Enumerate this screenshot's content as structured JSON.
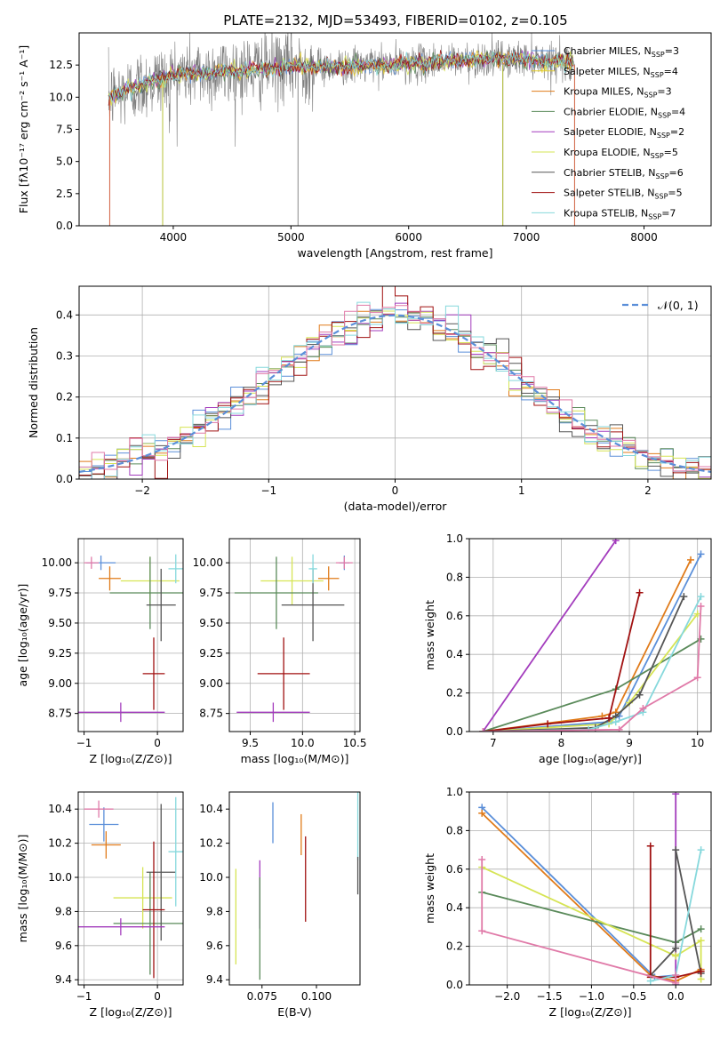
{
  "figure_title": "PLATE=2132, MJD=53493, FIBERID=0102, z=0.105",
  "colors": {
    "grid": "#b0b0b0",
    "gauss": "#5b8fd9"
  },
  "chart_data": [
    {
      "id": "spectrum",
      "type": "line",
      "xlabel": "wavelength [Angstrom, rest frame]",
      "ylabel": "Flux [fλ10⁻¹⁷ erg cm⁻² s⁻¹ A⁻¹]",
      "xlim": [
        3200,
        8570
      ],
      "ylim": [
        0,
        15
      ],
      "xticks": [
        4000,
        5000,
        6000,
        7000,
        8000
      ],
      "yticks": [
        0.0,
        2.5,
        5.0,
        7.5,
        10.0,
        12.5
      ],
      "grid": false,
      "legend_position": "top-right",
      "observed_range": [
        3450,
        7410
      ],
      "continuum_anchors": [
        [
          3450,
          10.0
        ],
        [
          3600,
          10.5
        ],
        [
          3800,
          11.2
        ],
        [
          4000,
          11.8
        ],
        [
          4500,
          12.0
        ],
        [
          5000,
          12.4
        ],
        [
          5500,
          12.4
        ],
        [
          6000,
          12.6
        ],
        [
          6500,
          12.9
        ],
        [
          7000,
          13.0
        ],
        [
          7400,
          12.7
        ]
      ],
      "series": [
        {
          "name": "Chabrier MILES, N",
          "sub": "SSP",
          "count": "=3",
          "color": "#5b8fd9"
        },
        {
          "name": "Salpeter MILES, N",
          "sub": "SSP",
          "count": "=4",
          "color": "#e5ce28"
        },
        {
          "name": "Kroupa MILES, N",
          "sub": "SSP",
          "count": "=3",
          "color": "#e07b1a"
        },
        {
          "name": "Chabrier ELODIE, N",
          "sub": "SSP",
          "count": "=4",
          "color": "#5a8a5a"
        },
        {
          "name": "Salpeter ELODIE, N",
          "sub": "SSP",
          "count": "=2",
          "color": "#a33cbd"
        },
        {
          "name": "Kroupa ELODIE, N",
          "sub": "SSP",
          "count": "=5",
          "color": "#d6e454"
        },
        {
          "name": "Chabrier STELIB, N",
          "sub": "SSP",
          "count": "=6",
          "color": "#555555"
        },
        {
          "name": "Salpeter STELIB, N",
          "sub": "SSP",
          "count": "=5",
          "color": "#a01010"
        },
        {
          "name": "Kroupa STELIB, N",
          "sub": "SSP",
          "count": "=7",
          "color": "#86d8dc"
        }
      ]
    },
    {
      "id": "residuals",
      "type": "line",
      "xlabel": "(data-model)/error",
      "ylabel": "Normed distribution",
      "xlim": [
        -2.5,
        2.5
      ],
      "ylim": [
        0,
        0.47
      ],
      "xticks": [
        -2,
        -1,
        0,
        1,
        2
      ],
      "yticks": [
        0.0,
        0.1,
        0.2,
        0.3,
        0.4
      ],
      "grid": true,
      "legend": {
        "label": "𝒩(0, 1)",
        "position": "top-right"
      },
      "histogram_colors": [
        "#5b8fd9",
        "#e07b1a",
        "#5a8a5a",
        "#a33cbd",
        "#d6e454",
        "#555555",
        "#a01010",
        "#86d8dc",
        "#e07aa8"
      ]
    },
    {
      "id": "age_vs_z",
      "type": "scatter",
      "xlabel": "Z [log₁₀(Z/Z⊙)]",
      "ylabel": "age  [log₁₀(age/yr)]",
      "xlim": [
        -1.08,
        0.35
      ],
      "ylim": [
        8.6,
        10.2
      ],
      "xticks": [
        -1,
        0
      ],
      "yticks": [
        8.75,
        9.0,
        9.25,
        9.5,
        9.75,
        10.0
      ],
      "grid": true,
      "points": [
        {
          "x": -0.77,
          "y": 10.0,
          "xerr": 0.2,
          "yerr": 0.06,
          "color": "#5b8fd9"
        },
        {
          "x": -0.65,
          "y": 9.87,
          "xerr": 0.15,
          "yerr": 0.1,
          "color": "#e07b1a"
        },
        {
          "x": -0.9,
          "y": 10.0,
          "xerr": 0.1,
          "yerr": 0.05,
          "color": "#e07aa8"
        },
        {
          "x": -0.1,
          "y": 9.85,
          "xerr": 0.4,
          "yerr": 0.2,
          "color": "#d6e454"
        },
        {
          "x": -0.1,
          "y": 9.75,
          "xerr": 0.55,
          "yerr": 0.3,
          "color": "#5a8a5a"
        },
        {
          "x": 0.05,
          "y": 9.65,
          "xerr": 0.2,
          "yerr": 0.3,
          "color": "#555555"
        },
        {
          "x": 0.25,
          "y": 9.95,
          "xerr": 0.1,
          "yerr": 0.12,
          "color": "#86d8dc"
        },
        {
          "x": -0.05,
          "y": 9.08,
          "xerr": 0.15,
          "yerr": 0.3,
          "color": "#a01010"
        },
        {
          "x": -0.5,
          "y": 8.76,
          "xerr": 0.6,
          "yerr": 0.08,
          "color": "#a33cbd"
        }
      ]
    },
    {
      "id": "age_vs_mass",
      "type": "scatter",
      "xlabel": "mass [log₁₀(M/M⊙)]",
      "ylabel": "",
      "xlim": [
        9.3,
        10.55
      ],
      "ylim": [
        8.6,
        10.2
      ],
      "xticks": [
        9.5,
        10.0,
        10.5
      ],
      "yticks": [
        8.75,
        9.0,
        9.25,
        9.5,
        9.75,
        10.0
      ],
      "grid": true,
      "points": [
        {
          "x": 10.4,
          "y": 10.0,
          "xerr": 0.05,
          "yerr": 0.06,
          "color": "#5b8fd9"
        },
        {
          "x": 10.25,
          "y": 9.87,
          "xerr": 0.1,
          "yerr": 0.1,
          "color": "#e07b1a"
        },
        {
          "x": 10.4,
          "y": 10.0,
          "xerr": 0.08,
          "yerr": 0.05,
          "color": "#e07aa8"
        },
        {
          "x": 9.9,
          "y": 9.85,
          "xerr": 0.3,
          "yerr": 0.2,
          "color": "#d6e454"
        },
        {
          "x": 9.75,
          "y": 9.75,
          "xerr": 0.4,
          "yerr": 0.3,
          "color": "#5a8a5a"
        },
        {
          "x": 10.1,
          "y": 9.65,
          "xerr": 0.3,
          "yerr": 0.3,
          "color": "#555555"
        },
        {
          "x": 10.1,
          "y": 9.95,
          "xerr": 0.04,
          "yerr": 0.12,
          "color": "#86d8dc"
        },
        {
          "x": 9.82,
          "y": 9.08,
          "xerr": 0.25,
          "yerr": 0.3,
          "color": "#a01010"
        },
        {
          "x": 9.72,
          "y": 8.76,
          "xerr": 0.35,
          "yerr": 0.08,
          "color": "#a33cbd"
        }
      ]
    },
    {
      "id": "mass_weight_vs_age",
      "type": "line",
      "xlabel": "age  [log₁₀(age/yr)]",
      "ylabel": "mass weight",
      "xlim": [
        6.65,
        10.2
      ],
      "ylim": [
        0,
        1.0
      ],
      "xticks": [
        7,
        8,
        9,
        10
      ],
      "yticks": [
        0.0,
        0.2,
        0.4,
        0.6,
        0.8,
        1.0
      ],
      "grid": true,
      "series": [
        {
          "color": "#5b8fd9",
          "x": [
            6.85,
            8.7,
            8.85,
            10.05
          ],
          "y": [
            0.0,
            0.05,
            0.08,
            0.92
          ]
        },
        {
          "color": "#e07b1a",
          "x": [
            6.85,
            8.6,
            8.8,
            9.9
          ],
          "y": [
            0.0,
            0.08,
            0.1,
            0.89
          ]
        },
        {
          "color": "#5a8a5a",
          "x": [
            6.85,
            8.8,
            10.05
          ],
          "y": [
            0.0,
            0.22,
            0.48
          ]
        },
        {
          "color": "#a33cbd",
          "x": [
            6.85,
            8.8
          ],
          "y": [
            0.0,
            0.99
          ]
        },
        {
          "color": "#d6e454",
          "x": [
            6.85,
            8.7,
            9.0,
            10.0
          ],
          "y": [
            0.0,
            0.04,
            0.15,
            0.61
          ]
        },
        {
          "color": "#555555",
          "x": [
            6.85,
            8.5,
            8.8,
            9.15,
            9.8
          ],
          "y": [
            0.0,
            0.02,
            0.08,
            0.19,
            0.7
          ]
        },
        {
          "color": "#a01010",
          "x": [
            6.85,
            7.8,
            8.7,
            9.15
          ],
          "y": [
            0.0,
            0.04,
            0.07,
            0.72
          ]
        },
        {
          "color": "#86d8dc",
          "x": [
            6.85,
            8.4,
            8.8,
            9.2,
            10.05
          ],
          "y": [
            0.0,
            0.01,
            0.05,
            0.1,
            0.7
          ]
        },
        {
          "color": "#e07aa8",
          "x": [
            6.85,
            8.85,
            9.2,
            10.0,
            10.05
          ],
          "y": [
            0.0,
            0.01,
            0.12,
            0.28,
            0.65
          ]
        }
      ]
    },
    {
      "id": "mass_vs_z",
      "type": "scatter",
      "xlabel": "Z [log₁₀(Z/Z⊙)]",
      "ylabel": "mass [log₁₀(M/M⊙)]",
      "xlim": [
        -1.08,
        0.35
      ],
      "ylim": [
        9.37,
        10.5
      ],
      "xticks": [
        -1,
        0
      ],
      "yticks": [
        9.4,
        9.6,
        9.8,
        10.0,
        10.2,
        10.4
      ],
      "grid": true,
      "points": [
        {
          "x": -0.73,
          "y": 10.31,
          "xerr": 0.2,
          "yerr": 0.1,
          "color": "#5b8fd9"
        },
        {
          "x": -0.7,
          "y": 10.19,
          "xerr": 0.2,
          "yerr": 0.08,
          "color": "#e07b1a"
        },
        {
          "x": -0.8,
          "y": 10.4,
          "xerr": 0.2,
          "yerr": 0.05,
          "color": "#e07aa8"
        },
        {
          "x": -0.2,
          "y": 9.88,
          "xerr": 0.4,
          "yerr": 0.18,
          "color": "#d6e454"
        },
        {
          "x": -0.1,
          "y": 9.73,
          "xerr": 0.5,
          "yerr": 0.3,
          "color": "#5a8a5a"
        },
        {
          "x": 0.05,
          "y": 10.03,
          "xerr": 0.2,
          "yerr": 0.4,
          "color": "#555555"
        },
        {
          "x": 0.25,
          "y": 10.15,
          "xerr": 0.1,
          "yerr": 0.32,
          "color": "#86d8dc"
        },
        {
          "x": -0.05,
          "y": 9.81,
          "xerr": 0.15,
          "yerr": 0.4,
          "color": "#a01010"
        },
        {
          "x": -0.5,
          "y": 9.71,
          "xerr": 0.6,
          "yerr": 0.05,
          "color": "#a33cbd"
        }
      ]
    },
    {
      "id": "mass_vs_ebv",
      "type": "scatter",
      "xlabel": "E(B-V)",
      "ylabel": "",
      "xlim": [
        0.06,
        0.12
      ],
      "ylim": [
        9.37,
        10.5
      ],
      "xticks": [
        0.075,
        0.1
      ],
      "yticks": [
        9.4,
        9.6,
        9.8,
        10.0,
        10.2,
        10.4
      ],
      "grid": false,
      "points": [
        {
          "x": 0.063,
          "y": 9.77,
          "yerr": 0.28,
          "color": "#d6e454"
        },
        {
          "x": 0.074,
          "y": 9.9,
          "yerr": 0.2,
          "color": "#a33cbd"
        },
        {
          "x": 0.074,
          "y": 9.7,
          "yerr": 0.3,
          "color": "#5a8a5a"
        },
        {
          "x": 0.08,
          "y": 10.32,
          "yerr": 0.12,
          "color": "#5b8fd9"
        },
        {
          "x": 0.093,
          "y": 10.25,
          "yerr": 0.12,
          "color": "#e07b1a"
        },
        {
          "x": 0.095,
          "y": 9.99,
          "yerr": 0.25,
          "color": "#a01010"
        },
        {
          "x": 0.119,
          "y": 10.3,
          "yerr": 0.2,
          "color": "#86d8dc"
        },
        {
          "x": 0.119,
          "y": 10.01,
          "yerr": 0.11,
          "color": "#555555"
        }
      ]
    },
    {
      "id": "mass_weight_vs_z",
      "type": "line",
      "xlabel": "Z [log₁₀(Z/Z⊙)]",
      "ylabel": "mass weight",
      "xlim": [
        -2.45,
        0.42
      ],
      "ylim": [
        0,
        1.0
      ],
      "xticks": [
        -2.0,
        -1.5,
        -1.0,
        -0.5,
        0.0
      ],
      "yticks": [
        0.0,
        0.2,
        0.4,
        0.6,
        0.8,
        1.0
      ],
      "grid": true,
      "series": [
        {
          "color": "#5b8fd9",
          "x": [
            -2.3,
            -0.25,
            0.0
          ],
          "y": [
            0.92,
            0.04,
            0.05
          ]
        },
        {
          "color": "#e07b1a",
          "x": [
            -2.3,
            -0.3,
            0.0,
            0.3
          ],
          "y": [
            0.89,
            0.05,
            0.02,
            0.08
          ]
        },
        {
          "color": "#5a8a5a",
          "x": [
            -2.3,
            0.0,
            0.3
          ],
          "y": [
            0.48,
            0.22,
            0.29
          ]
        },
        {
          "color": "#a33cbd",
          "x": [
            0.0,
            0.0
          ],
          "y": [
            0.0,
            0.99
          ]
        },
        {
          "color": "#d6e454",
          "x": [
            -2.3,
            0.0,
            0.3,
            0.3
          ],
          "y": [
            0.61,
            0.15,
            0.23,
            0.03
          ]
        },
        {
          "color": "#555555",
          "x": [
            -0.3,
            0.0,
            0.0,
            0.3
          ],
          "y": [
            0.05,
            0.19,
            0.7,
            0.06
          ]
        },
        {
          "color": "#a01010",
          "x": [
            -0.3,
            -0.3,
            0.0,
            0.3
          ],
          "y": [
            0.72,
            0.04,
            0.04,
            0.07
          ]
        },
        {
          "color": "#86d8dc",
          "x": [
            -0.3,
            0.0,
            0.3
          ],
          "y": [
            0.02,
            0.05,
            0.7
          ]
        },
        {
          "color": "#e07aa8",
          "x": [
            -2.3,
            -2.3,
            0.0,
            0.0
          ],
          "y": [
            0.65,
            0.28,
            0.01,
            0.05
          ]
        }
      ]
    }
  ]
}
